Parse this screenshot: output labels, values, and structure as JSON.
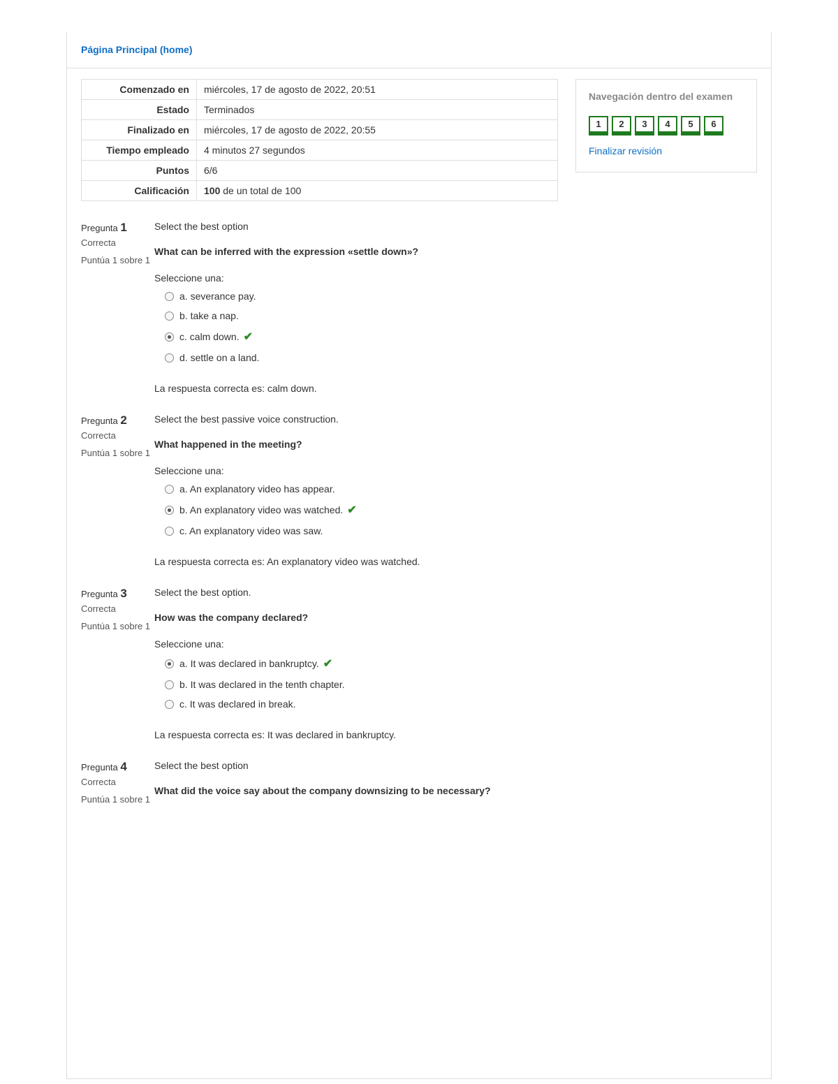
{
  "breadcrumb": {
    "home": "Página Principal (home)"
  },
  "summary": {
    "rows": [
      {
        "label": "Comenzado en",
        "value": "miércoles, 17 de agosto de 2022, 20:51"
      },
      {
        "label": "Estado",
        "value": "Terminados"
      },
      {
        "label": "Finalizado en",
        "value": "miércoles, 17 de agosto de 2022, 20:55"
      },
      {
        "label": "Tiempo empleado",
        "value": "4 minutos 27 segundos"
      },
      {
        "label": "Puntos",
        "value": "6/6"
      }
    ],
    "calificacion_label": "Calificación",
    "calificacion_score": "100",
    "calificacion_rest": " de un total de 100"
  },
  "nav": {
    "title": "Navegación dentro del examen",
    "items": [
      "1",
      "2",
      "3",
      "4",
      "5",
      "6"
    ],
    "finish": "Finalizar revisión"
  },
  "labels": {
    "pregunta": "Pregunta ",
    "correcta": "Correcta",
    "puntua": "Puntúa 1 sobre 1",
    "seleccione": "Seleccione una:",
    "respuesta_prefix": "La respuesta correcta es: "
  },
  "questions": [
    {
      "num": "1",
      "instruction": "Select the best option",
      "stem": "What can be inferred with the expression «settle down»?",
      "options": [
        {
          "letter": "a.",
          "text": "severance pay.",
          "selected": false,
          "correct": false
        },
        {
          "letter": "b.",
          "text": "take a nap.",
          "selected": false,
          "correct": false
        },
        {
          "letter": "c.",
          "text": "calm down.",
          "selected": true,
          "correct": true
        },
        {
          "letter": "d.",
          "text": "settle on a land.",
          "selected": false,
          "correct": false
        }
      ],
      "correct_text": "calm down."
    },
    {
      "num": "2",
      "instruction": "Select the best passive voice construction.",
      "stem": "What happened in the meeting?",
      "options": [
        {
          "letter": "a.",
          "text": "An explanatory video has appear.",
          "selected": false,
          "correct": false
        },
        {
          "letter": "b.",
          "text": "An explanatory video was watched.",
          "selected": true,
          "correct": true
        },
        {
          "letter": "c.",
          "text": "An explanatory video was saw.",
          "selected": false,
          "correct": false
        }
      ],
      "correct_text": "An explanatory video was watched."
    },
    {
      "num": "3",
      "instruction": "Select the best option.",
      "stem": "How was the company declared?",
      "options": [
        {
          "letter": "a.",
          "text": "It was declared in bankruptcy.",
          "selected": true,
          "correct": true
        },
        {
          "letter": "b.",
          "text": "It was declared in the tenth chapter.",
          "selected": false,
          "correct": false
        },
        {
          "letter": "c.",
          "text": "It was declared in break.",
          "selected": false,
          "correct": false
        }
      ],
      "correct_text": "It was declared in bankruptcy."
    },
    {
      "num": "4",
      "instruction": "Select the best option",
      "stem": "What did the voice say about the company downsizing to be necessary?",
      "options": [],
      "correct_text": ""
    }
  ]
}
